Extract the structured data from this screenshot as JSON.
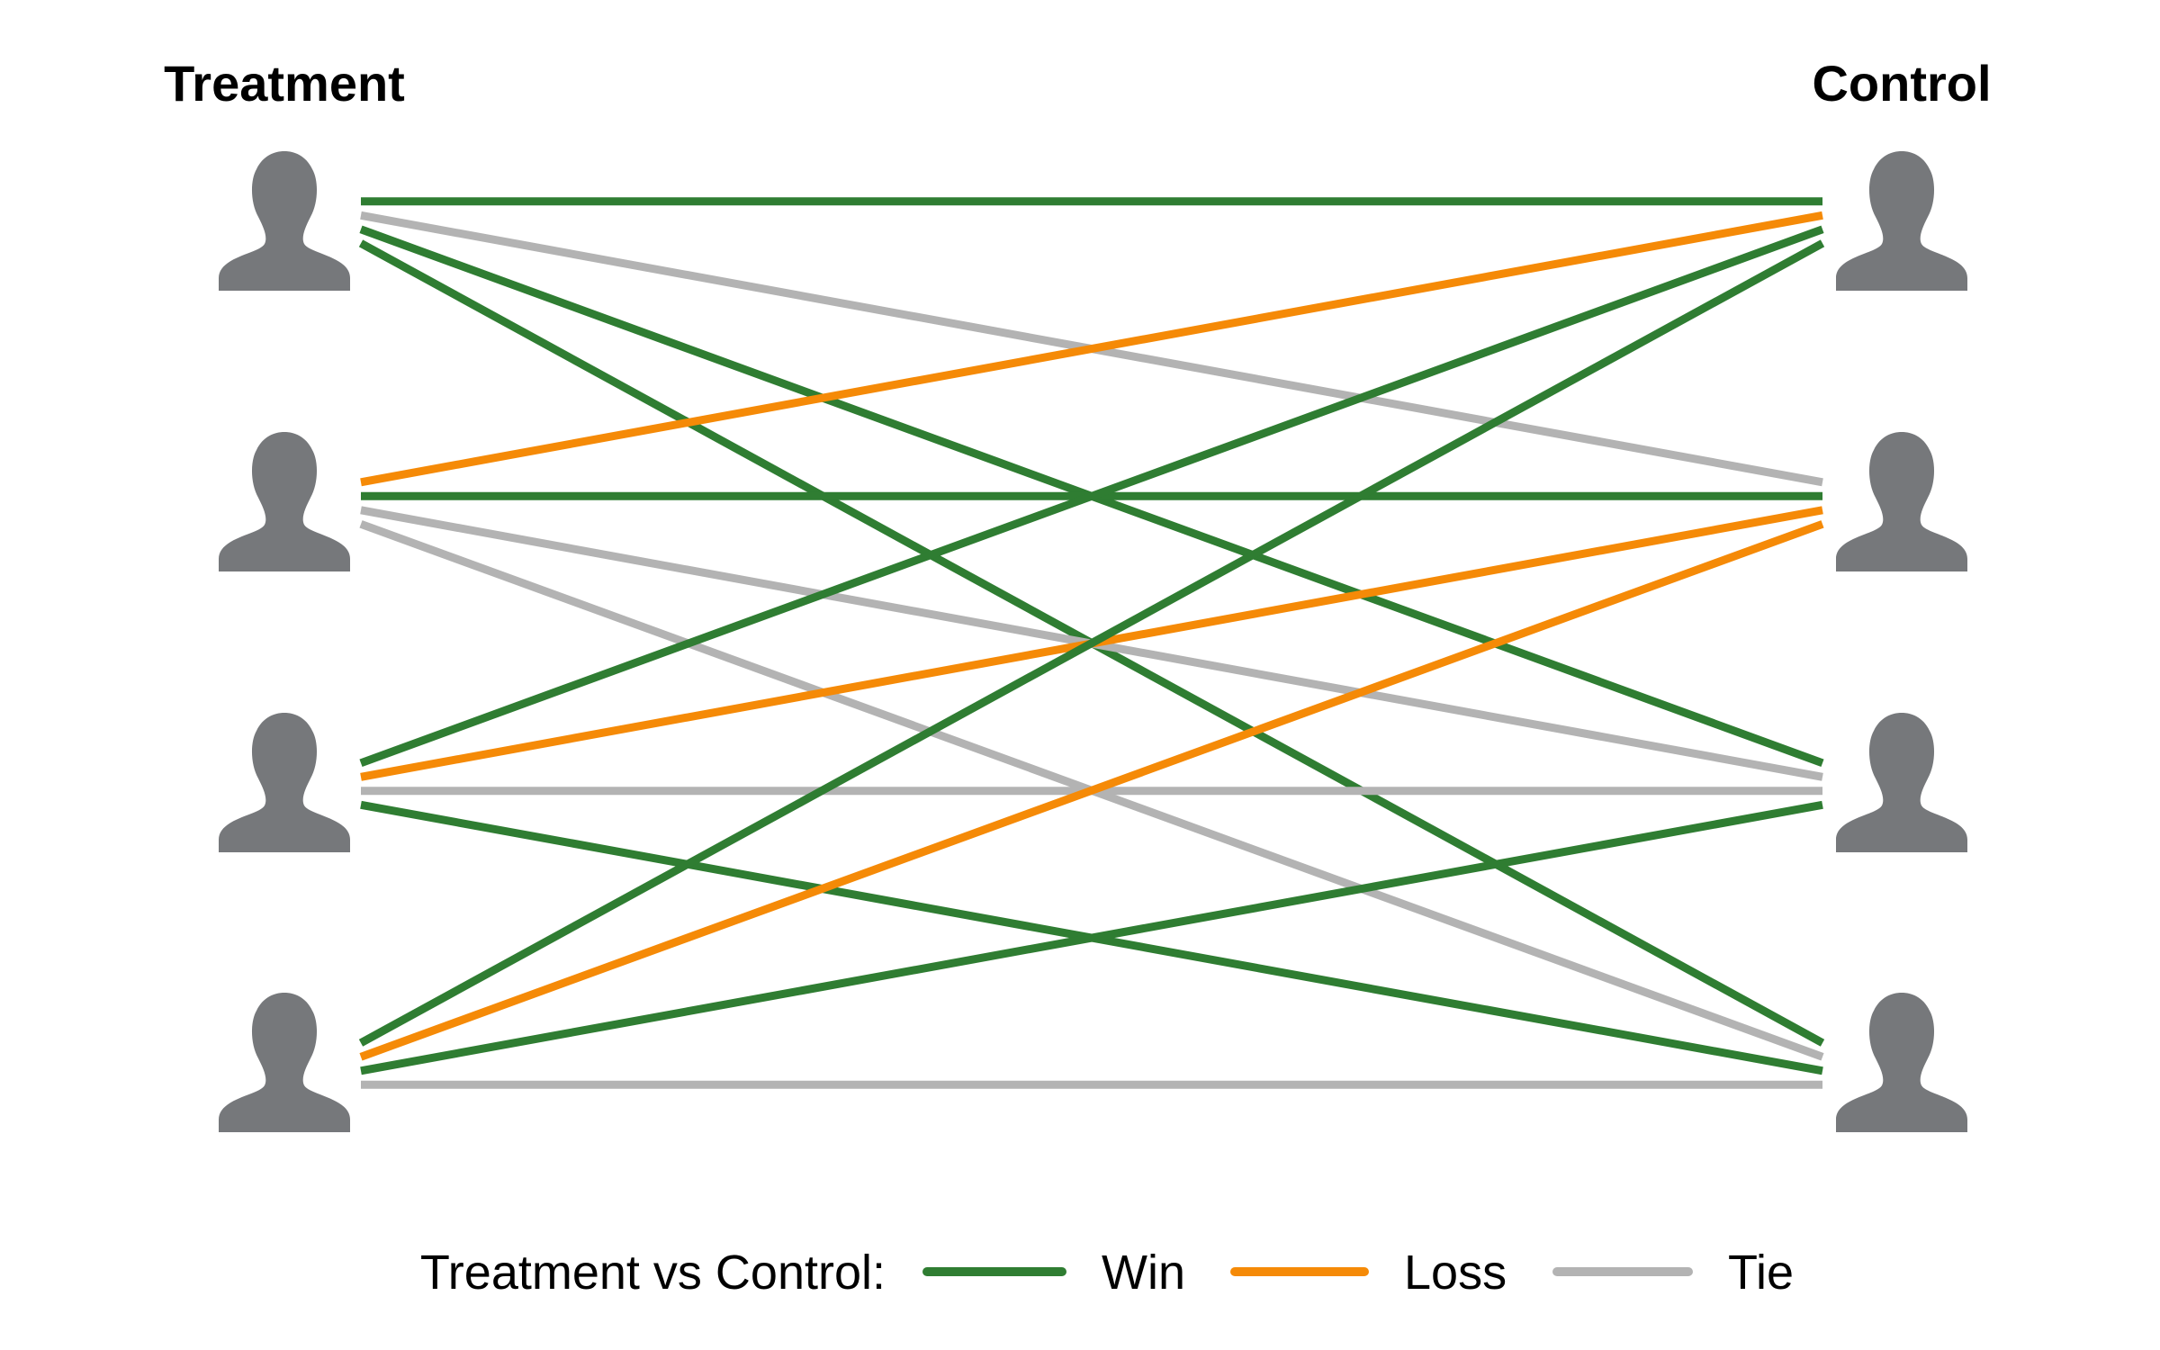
{
  "titles": {
    "left": "Treatment",
    "right": "Control"
  },
  "colors": {
    "win": "#2f7d32",
    "loss": "#f58a07",
    "tie": "#b3b3b3",
    "person": "#76787b"
  },
  "icon": "person-silhouette-icon",
  "treatment_count": 4,
  "control_count": 4,
  "matchups": [
    {
      "treatment": 1,
      "control": 1,
      "result": "win"
    },
    {
      "treatment": 1,
      "control": 2,
      "result": "tie"
    },
    {
      "treatment": 1,
      "control": 3,
      "result": "win"
    },
    {
      "treatment": 1,
      "control": 4,
      "result": "win"
    },
    {
      "treatment": 2,
      "control": 1,
      "result": "loss"
    },
    {
      "treatment": 2,
      "control": 2,
      "result": "win"
    },
    {
      "treatment": 2,
      "control": 3,
      "result": "tie"
    },
    {
      "treatment": 2,
      "control": 4,
      "result": "tie"
    },
    {
      "treatment": 3,
      "control": 1,
      "result": "win"
    },
    {
      "treatment": 3,
      "control": 2,
      "result": "loss"
    },
    {
      "treatment": 3,
      "control": 3,
      "result": "tie"
    },
    {
      "treatment": 3,
      "control": 4,
      "result": "win"
    },
    {
      "treatment": 4,
      "control": 1,
      "result": "win"
    },
    {
      "treatment": 4,
      "control": 2,
      "result": "loss"
    },
    {
      "treatment": 4,
      "control": 3,
      "result": "win"
    },
    {
      "treatment": 4,
      "control": 4,
      "result": "tie"
    }
  ],
  "legend": {
    "title": "Treatment vs Control:",
    "items": [
      {
        "key": "win",
        "label": "Win"
      },
      {
        "key": "loss",
        "label": "Loss"
      },
      {
        "key": "tie",
        "label": "Tie"
      }
    ]
  }
}
